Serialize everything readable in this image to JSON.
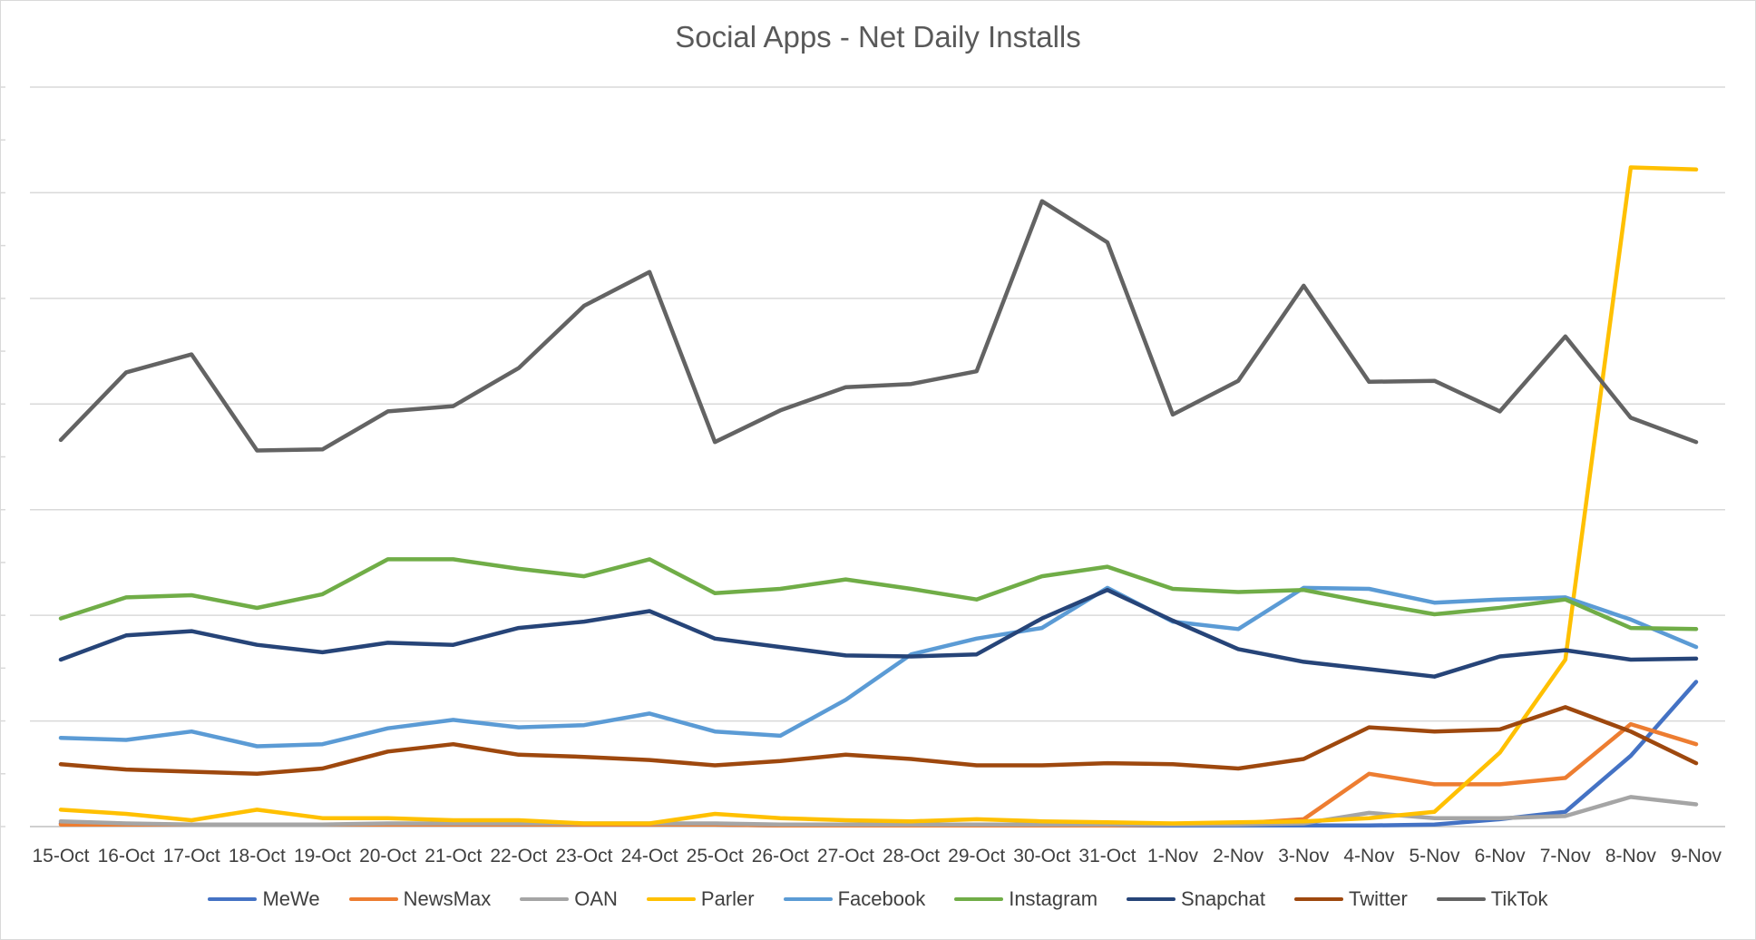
{
  "chart_data": {
    "type": "line",
    "title": "Social Apps - Net Daily Installs",
    "xlabel": "",
    "ylabel": "",
    "y_tick_labels_shown": false,
    "ylim": [
      0,
      700
    ],
    "grid": true,
    "legend_position": "bottom",
    "categories": [
      "15-Oct",
      "16-Oct",
      "17-Oct",
      "18-Oct",
      "19-Oct",
      "20-Oct",
      "21-Oct",
      "22-Oct",
      "23-Oct",
      "24-Oct",
      "25-Oct",
      "26-Oct",
      "27-Oct",
      "28-Oct",
      "29-Oct",
      "30-Oct",
      "31-Oct",
      "1-Nov",
      "2-Nov",
      "3-Nov",
      "4-Nov",
      "5-Nov",
      "6-Nov",
      "7-Nov",
      "8-Nov",
      "9-Nov"
    ],
    "series": [
      {
        "name": "MeWe",
        "color": "#4472c4",
        "values": [
          3,
          2,
          2,
          2,
          2,
          2,
          2,
          2,
          2,
          2,
          2,
          1,
          1,
          1,
          1,
          1,
          1,
          1,
          1,
          1,
          1,
          2,
          7,
          14,
          67,
          137
        ]
      },
      {
        "name": "NewsMax",
        "color": "#ed7d31",
        "values": [
          2,
          2,
          2,
          2,
          2,
          2,
          2,
          2,
          2,
          2,
          2,
          1,
          1,
          1,
          1,
          1,
          1,
          2,
          3,
          7,
          50,
          40,
          40,
          46,
          97,
          78
        ]
      },
      {
        "name": "OAN",
        "color": "#a5a5a5",
        "values": [
          5,
          3,
          2,
          2,
          2,
          3,
          3,
          3,
          3,
          3,
          3,
          2,
          2,
          2,
          2,
          2,
          2,
          2,
          2,
          3,
          13,
          8,
          8,
          10,
          28,
          21
        ]
      },
      {
        "name": "Parler",
        "color": "#ffc000",
        "values": [
          16,
          12,
          6,
          16,
          8,
          8,
          6,
          6,
          3,
          3,
          12,
          8,
          6,
          5,
          7,
          5,
          4,
          3,
          4,
          5,
          8,
          14,
          70,
          158,
          624,
          622
        ]
      },
      {
        "name": "Facebook",
        "color": "#5b9bd5",
        "values": [
          84,
          82,
          90,
          76,
          78,
          93,
          101,
          94,
          96,
          107,
          90,
          86,
          120,
          163,
          178,
          188,
          226,
          194,
          187,
          226,
          225,
          212,
          215,
          217,
          196,
          170
        ]
      },
      {
        "name": "Instagram",
        "color": "#70ad47",
        "values": [
          197,
          217,
          219,
          207,
          220,
          253,
          253,
          244,
          237,
          253,
          221,
          225,
          234,
          225,
          215,
          237,
          246,
          225,
          222,
          224,
          212,
          201,
          207,
          215,
          188,
          187
        ]
      },
      {
        "name": "Snapchat",
        "color": "#264478",
        "values": [
          158,
          181,
          185,
          172,
          165,
          174,
          172,
          188,
          194,
          204,
          178,
          170,
          162,
          161,
          163,
          197,
          224,
          195,
          168,
          156,
          149,
          142,
          161,
          167,
          158,
          159
        ]
      },
      {
        "name": "Twitter",
        "color": "#9e480e",
        "values": [
          59,
          54,
          52,
          50,
          55,
          71,
          78,
          68,
          66,
          63,
          58,
          62,
          68,
          64,
          58,
          58,
          60,
          59,
          55,
          64,
          94,
          90,
          92,
          113,
          90,
          60
        ]
      },
      {
        "name": "TikTok",
        "color": "#636363",
        "values": [
          366,
          430,
          447,
          356,
          357,
          393,
          398,
          434,
          493,
          525,
          364,
          394,
          416,
          419,
          431,
          592,
          553,
          390,
          422,
          512,
          421,
          422,
          393,
          464,
          387,
          364
        ]
      }
    ]
  }
}
